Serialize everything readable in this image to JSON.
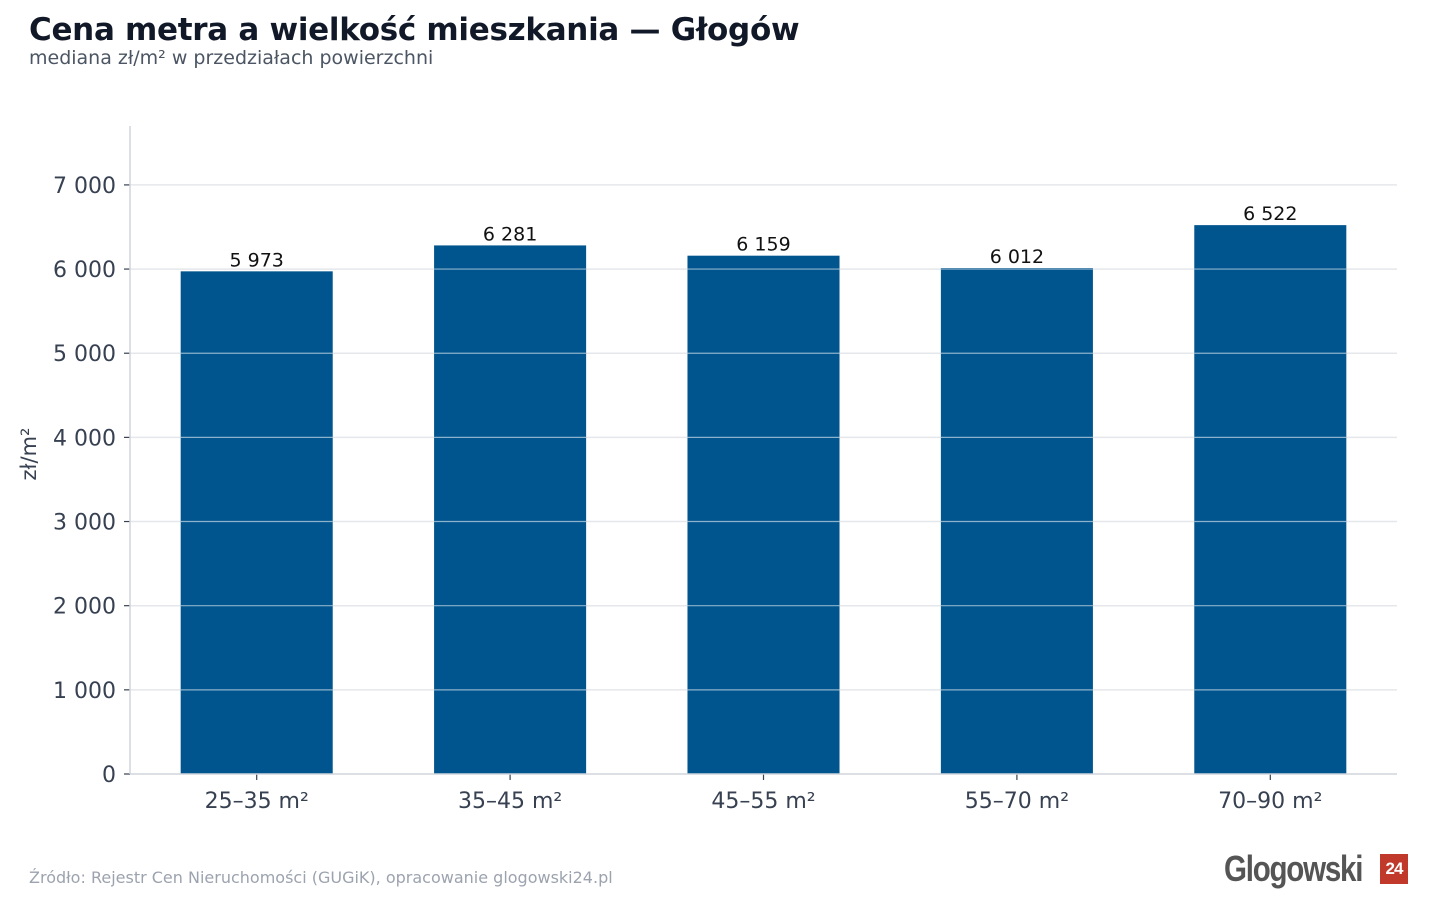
{
  "header": {
    "title": "Cena metra a wielkość mieszkania — Głogów",
    "subtitle": "mediana zł/m² w przedziałach powierzchni"
  },
  "footer": {
    "source": "Źródło: Rejestr Cen Nieruchomości (GUGiK), opracowanie glogowski24.pl"
  },
  "logo": {
    "text": "Glogowski",
    "badge": "24"
  },
  "colors": {
    "bar": "#00558e",
    "grid": "#e5e7eb",
    "axis": "#d1d5db",
    "tick_text": "#374151",
    "value_text": "#111111"
  },
  "chart_data": {
    "type": "bar",
    "categories": [
      "25–35 m²",
      "35–45 m²",
      "45–55 m²",
      "55–70 m²",
      "70–90 m²"
    ],
    "values": [
      5973,
      6281,
      6159,
      6012,
      6522
    ],
    "value_labels": [
      "5 973",
      "6 281",
      "6 159",
      "6 012",
      "6 522"
    ],
    "title": "Cena metra a wielkość mieszkania — Głogów",
    "subtitle": "mediana zł/m² w przedziałach powierzchni",
    "xlabel": "",
    "ylabel": "zł/m²",
    "ylim": [
      0,
      7700
    ],
    "yticks": [
      0,
      1000,
      2000,
      3000,
      4000,
      5000,
      6000,
      7000
    ],
    "ytick_labels": [
      "0",
      "1 000",
      "2 000",
      "3 000",
      "4 000",
      "5 000",
      "6 000",
      "7 000"
    ],
    "grid": true,
    "legend": "none"
  }
}
